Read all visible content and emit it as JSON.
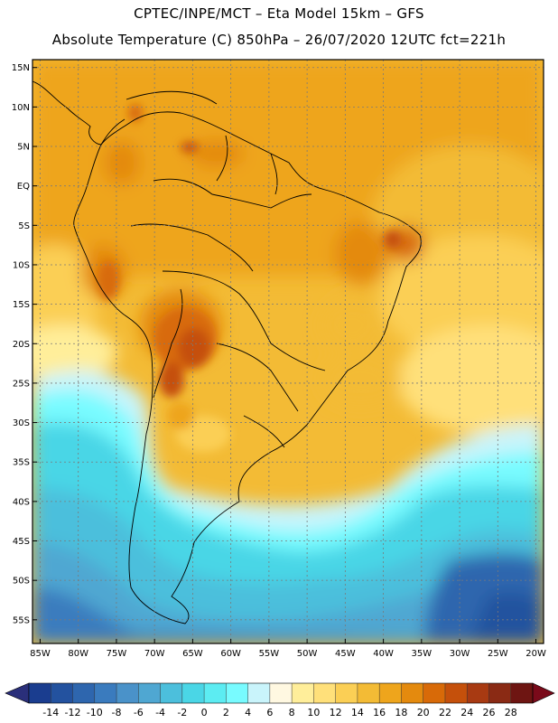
{
  "header": {
    "line1": "CPTEC/INPE/MCT –  Eta Model 15km – GFS",
    "line2": "Absolute Temperature (C) 850hPa – 26/07/2020 12UTC fct=221h"
  },
  "axes": {
    "lat_labels": [
      "15N",
      "10N",
      "5N",
      "EQ",
      "5S",
      "10S",
      "15S",
      "20S",
      "25S",
      "30S",
      "35S",
      "40S",
      "45S",
      "50S",
      "55S"
    ],
    "lat_values": [
      15,
      10,
      5,
      0,
      -5,
      -10,
      -15,
      -20,
      -25,
      -30,
      -35,
      -40,
      -45,
      -50,
      -55
    ],
    "lon_labels": [
      "85W",
      "80W",
      "75W",
      "70W",
      "65W",
      "60W",
      "55W",
      "50W",
      "45W",
      "40W",
      "35W",
      "30W",
      "25W",
      "20W"
    ],
    "lon_values": [
      -85,
      -80,
      -75,
      -70,
      -65,
      -60,
      -55,
      -50,
      -45,
      -40,
      -35,
      -30,
      -25,
      -20
    ]
  },
  "colorbar": {
    "labels": [
      "-14",
      "-12",
      "-10",
      "-8",
      "-6",
      "-4",
      "-2",
      "0",
      "2",
      "4",
      "6",
      "8",
      "10",
      "12",
      "14",
      "16",
      "18",
      "20",
      "22",
      "24",
      "26",
      "28"
    ],
    "colors": [
      "#1a3d8f",
      "#23529f",
      "#2e66ae",
      "#3a7bbe",
      "#4a92c9",
      "#4fa7d2",
      "#4cbfdc",
      "#4ad6e6",
      "#5cecf2",
      "#78fbff",
      "#c9f4fb",
      "#fff8e1",
      "#ffee9a",
      "#ffe07a",
      "#fbcf55",
      "#f3bb35",
      "#eea51c",
      "#e48a0e",
      "#d86a08",
      "#c5500b",
      "#a83a12",
      "#8a2a14",
      "#6e1512"
    ],
    "left_arrow_color": "#2a2f7a",
    "right_arrow_color": "#7a0a1a"
  },
  "map_meta": {
    "lon_min": -86,
    "lon_max": -19,
    "lat_min": -58,
    "lat_max": 16
  }
}
